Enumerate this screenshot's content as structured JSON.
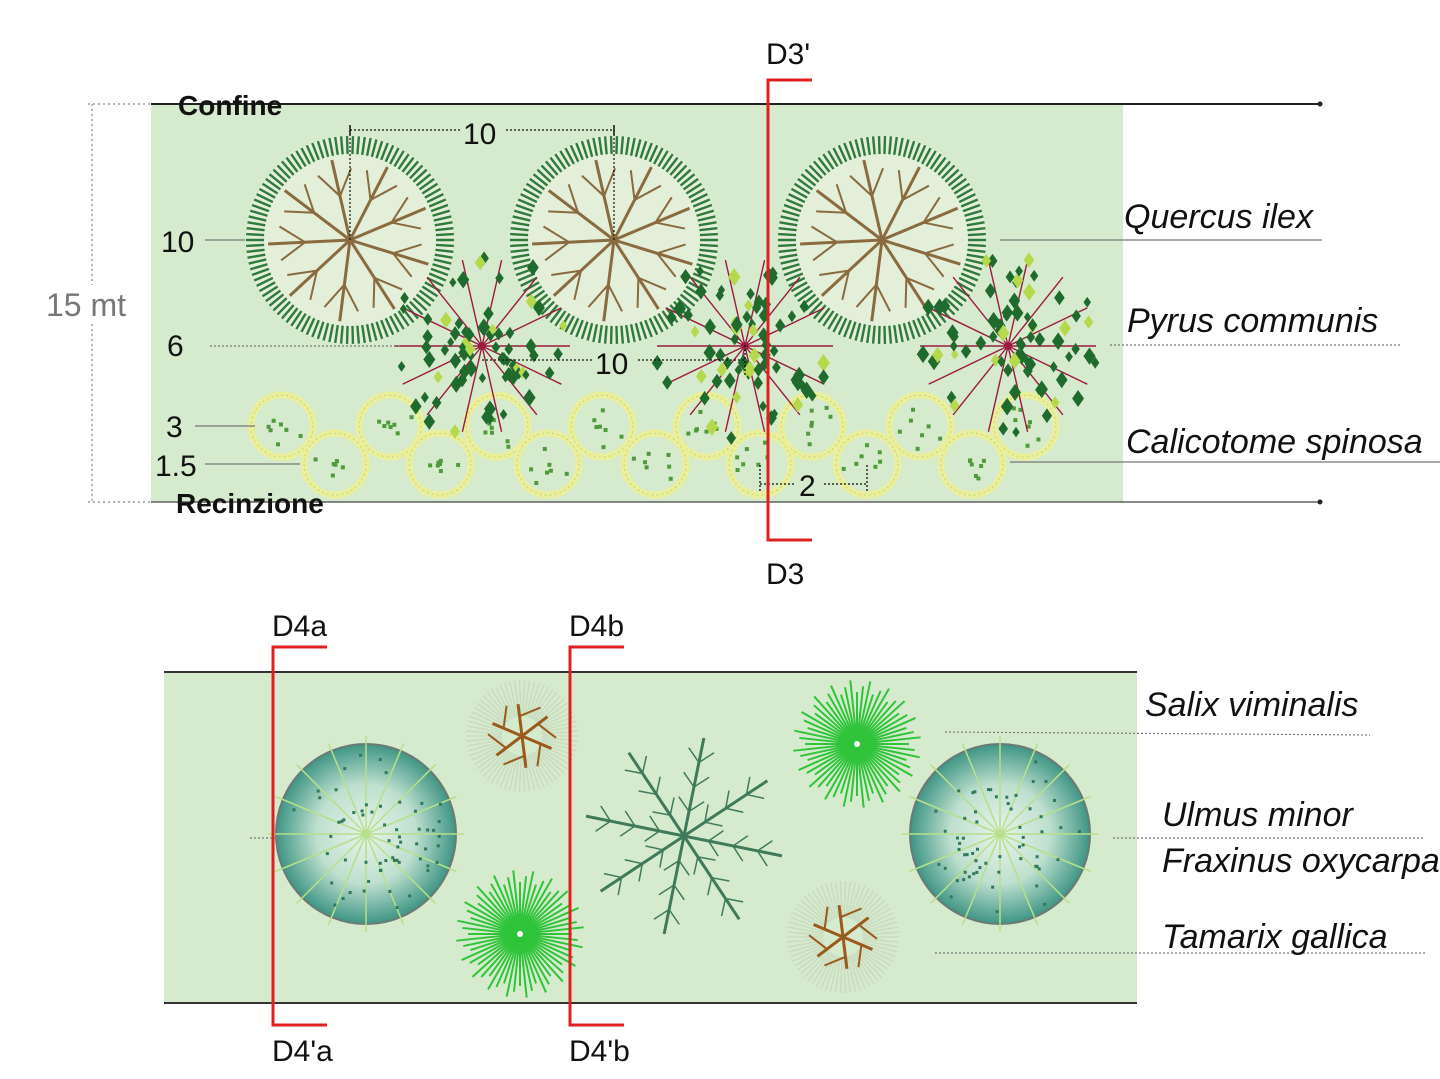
{
  "top_plan": {
    "total_width_label": "15 mt",
    "boundary_top": "Confine",
    "boundary_bottom": "Recinzione",
    "section_top": "D3'",
    "section_bottom": "D3",
    "dim_tree_spacing": "10",
    "dim_pear_spacing": "10",
    "dim_shrub_spacing": "2",
    "row_dims": [
      "10",
      "6",
      "3",
      "1.5"
    ],
    "species": [
      "Quercus ilex",
      "Pyrus communis",
      "Calicotome spinosa"
    ],
    "colors": {
      "band": "#d6eacd",
      "oak_foliage": "#2f7a3c",
      "oak_branch": "#8a6a3f",
      "pear_leaf": "#1f6b2e",
      "pear_stem": "#9c1b3f",
      "shrub": "#e9ef9c",
      "section_line": "#e02020"
    }
  },
  "bottom_plan": {
    "sections": [
      "D4a",
      "D4b",
      "D4'a",
      "D4'b"
    ],
    "species": [
      "Salix viminalis",
      "Ulmus minor",
      "Fraxinus oxycarpa",
      "Tamarix gallica"
    ],
    "colors": {
      "band": "#d6eacd",
      "ulmus_disc": "#4a9c8c",
      "salix": "#2fc43a",
      "fraxinus": "#3f7b5a",
      "tamarix": "#9a5a1c"
    }
  }
}
